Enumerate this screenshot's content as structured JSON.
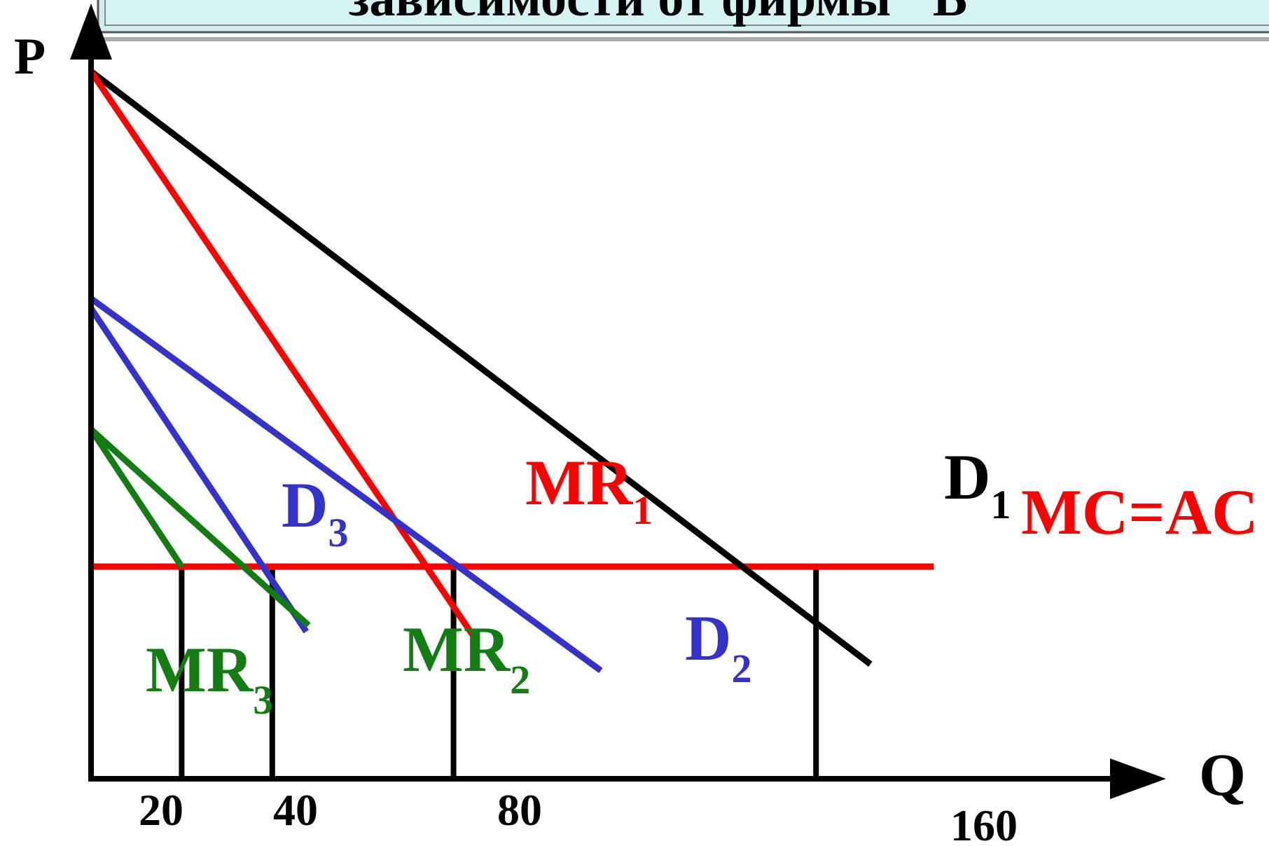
{
  "header": {
    "title_fragment": "зависимости от фирмы \"В\""
  },
  "chart_data": {
    "type": "line",
    "title": "",
    "xlabel": "Q",
    "ylabel": "P",
    "xlim": [
      0,
      190
    ],
    "ylim": [
      0,
      100
    ],
    "grid": false,
    "x_ticks": [
      20,
      40,
      80,
      160
    ],
    "x_tick_labels": [
      "20",
      "40",
      "80",
      "160"
    ],
    "colors": {
      "d1": "#000000",
      "mr1": "#ff0000",
      "mc_ac": "#ff0000",
      "d2": "#3333cc",
      "mr2": "#3333cc",
      "d3": "#137d13",
      "mr3": "#137d13",
      "axis": "#000000"
    },
    "series": [
      {
        "id": "d1",
        "label_main": "D",
        "label_sub": "1",
        "points": [
          [
            0,
            100
          ],
          [
            172,
            16.2
          ]
        ]
      },
      {
        "id": "mr1",
        "label_main": "MR",
        "label_sub": "1",
        "points": [
          [
            0,
            100
          ],
          [
            85,
            19.6
          ]
        ]
      },
      {
        "id": "d2",
        "label_main": "D",
        "label_sub": "2",
        "points": [
          [
            0,
            67.9
          ],
          [
            112.5,
            15.3
          ]
        ]
      },
      {
        "id": "mr2",
        "label_main": "MR",
        "label_sub": "2",
        "points": [
          [
            0,
            66.5
          ],
          [
            47.5,
            20.8
          ]
        ]
      },
      {
        "id": "d3",
        "label_main": "D",
        "label_sub": "3",
        "points": [
          [
            0,
            49.4
          ],
          [
            48,
            21.7
          ]
        ]
      },
      {
        "id": "mr3",
        "label_main": "MR",
        "label_sub": "3",
        "points": [
          [
            0,
            49.4
          ],
          [
            20,
            30
          ]
        ]
      },
      {
        "id": "mc_ac",
        "label": "MC=AC",
        "points": [
          [
            0,
            30
          ],
          [
            186,
            30
          ]
        ]
      }
    ],
    "vertical_guides": [
      20,
      40,
      80,
      160
    ],
    "guide_level": 30
  }
}
